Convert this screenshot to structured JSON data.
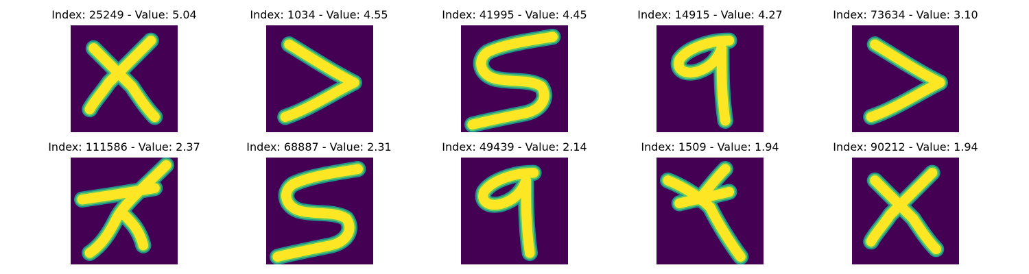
{
  "figure": {
    "panels": [
      {
        "title": "Index: 25249 - Value: 5.04",
        "glyph": "x"
      },
      {
        "title": "Index: 1034 - Value: 4.55",
        "glyph": "greater-than"
      },
      {
        "title": "Index: 41995 - Value: 4.45",
        "glyph": "s"
      },
      {
        "title": "Index: 14915 - Value: 4.27",
        "glyph": "q"
      },
      {
        "title": "Index: 73634 - Value: 3.10",
        "glyph": "greater-than"
      },
      {
        "title": "Index: 111586 - Value: 2.37",
        "glyph": "x-stroke"
      },
      {
        "title": "Index: 68887 - Value: 2.31",
        "glyph": "s"
      },
      {
        "title": "Index: 49439 - Value: 2.14",
        "glyph": "q"
      },
      {
        "title": "Index: 1509 - Value: 1.94",
        "glyph": "x-tail"
      },
      {
        "title": "Index: 90212 - Value: 1.94",
        "glyph": "x"
      }
    ],
    "colors": {
      "background": "#440154",
      "stroke_edge": "#21918c",
      "stroke_mid": "#5ec962",
      "stroke_core": "#fde725"
    }
  }
}
